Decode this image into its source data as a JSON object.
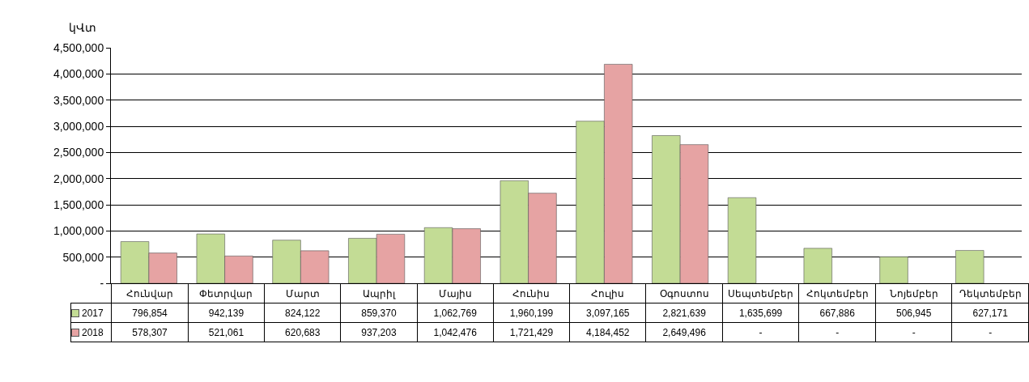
{
  "chart_data": {
    "type": "bar",
    "ylabel": "կՎտ",
    "categories": [
      "Հունվար",
      "Փետրվար",
      "Մարտ",
      "Ապրիլ",
      "Մայիս",
      "Հունիս",
      "Հուլիս",
      "Օգոստոս",
      "Սեպտեմբեր",
      "Հոկտեմբեր",
      "Նոյեմբեր",
      "Դեկտեմբեր"
    ],
    "series": [
      {
        "name": "2017",
        "color": "#c3dc95",
        "values": [
          796854,
          942139,
          824122,
          859370,
          1062769,
          1960199,
          3097165,
          2821639,
          1635699,
          667886,
          506945,
          627171
        ],
        "value_labels": [
          "796,854",
          "942,139",
          "824,122",
          "859,370",
          "1,062,769",
          "1,960,199",
          "3,097,165",
          "2,821,639",
          "1,635,699",
          "667,886",
          "506,945",
          "627,171"
        ]
      },
      {
        "name": "2018",
        "color": "#e6a3a3",
        "values": [
          578307,
          521061,
          620683,
          937203,
          1042476,
          1721429,
          4184452,
          2649496,
          null,
          null,
          null,
          null
        ],
        "value_labels": [
          "578,307",
          "521,061",
          "620,683",
          "937,203",
          "1,042,476",
          "1,721,429",
          "4,184,452",
          "2,649,496",
          "-",
          "-",
          "-",
          "-"
        ]
      }
    ],
    "ylim": [
      0,
      4500000
    ],
    "yticks": [
      {
        "value": 0,
        "label": "-"
      },
      {
        "value": 500000,
        "label": "500,000"
      },
      {
        "value": 1000000,
        "label": "1,000,000"
      },
      {
        "value": 1500000,
        "label": "1,500,000"
      },
      {
        "value": 2000000,
        "label": "2,000,000"
      },
      {
        "value": 2500000,
        "label": "2,500,000"
      },
      {
        "value": 3000000,
        "label": "3,000,000"
      },
      {
        "value": 3500000,
        "label": "3,500,000"
      },
      {
        "value": 4000000,
        "label": "4,000,000"
      },
      {
        "value": 4500000,
        "label": "4,500,000"
      }
    ],
    "grid": "y",
    "legend": "bottom left"
  }
}
